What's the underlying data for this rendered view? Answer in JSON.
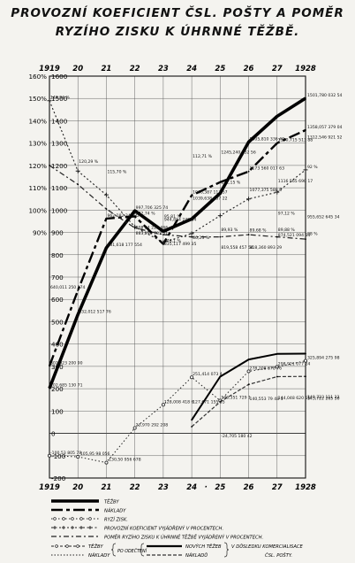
{
  "title": {
    "line1": "PROVOZNÍ KOEFICIENT ČSL. POŠTY A POMĚR",
    "line2": "RYZÍHO ZISKU K ÚHRNNÉ TĚŽBĚ."
  },
  "chart_data": {
    "type": "line",
    "title": "PROVOZNÍ KOEFICIENT ČSL. POŠTY A POMĚR RYZÍHO ZISKU K ÚHRNNÉ TĚŽBĚ.",
    "x_top": [
      "1919",
      "20",
      "21",
      "22",
      "23",
      "24",
      "25",
      "26",
      "27",
      "1928"
    ],
    "x_bottom": [
      "1919",
      "20",
      "21",
      "22",
      "23",
      "24",
      "·",
      "25",
      "26",
      "27",
      "1928"
    ],
    "y_left_ticks": [
      "160%",
      "150%",
      "140%",
      "130%",
      "120%",
      "110%",
      "100%",
      "90%"
    ],
    "y_right_ticks": [
      "1600",
      "1500",
      "1400",
      "1300",
      "1200",
      "1100",
      "1000",
      "900",
      "800",
      "700",
      "600",
      "500",
      "400",
      "300",
      "200",
      "100",
      "0",
      "-100",
      "-200"
    ],
    "ylim": [
      -200,
      1600
    ],
    "x_years": [
      1919,
      1920,
      1921,
      1922,
      1923,
      1924,
      1925,
      1926,
      1927,
      1928
    ],
    "series": [
      {
        "name": "TĚŽBY",
        "values": [
          202,
          532,
          831,
          997,
          905,
          960,
          1075,
          1305,
          1420,
          1501
        ]
      },
      {
        "name": "NÁKLADY",
        "values": [
          302,
          640,
          962,
          972,
          848,
          1066,
          1125,
          1173,
          1300,
          1358
        ]
      },
      {
        "name": "RYZÍ ZISK",
        "values": [
          -100,
          -105,
          -131,
          24,
          128,
          251,
          147,
          278,
          298,
          325
        ]
      },
      {
        "name": "PROVOZNÍ KOEFICIENT VYJÁDŘENÝ V PROCENTECH",
        "values": [
          1490,
          1175,
          1068,
          925,
          855,
          895,
          975,
          1050,
          1080,
          1180
        ]
      },
      {
        "name": "POMĚR RYZÍHO ZISKU K ÚHRNNÉ TĚŽBĚ VYJÁDŘENÝ V PROCENTECH",
        "values": [
          1200,
          1115,
          1005,
          920,
          890,
          880,
          880,
          890,
          880,
          870
        ]
      },
      {
        "name": "TĚŽBY",
        "values": [
          null,
          null,
          null,
          null,
          null,
          60,
          254,
          331,
          356,
          357
        ]
      },
      {
        "name": "NÁKLADY",
        "values": [
          null,
          null,
          null,
          null,
          null,
          30,
          141,
          219,
          254,
          255
        ]
      }
    ],
    "annotations": [
      {
        "text": "202,685 130 71",
        "x": 1919,
        "y": 202
      },
      {
        "text": "302,923 200 90",
        "x": 1919,
        "y": 302
      },
      {
        "text": "640,011 250 274",
        "x": 1919,
        "y": 640
      },
      {
        "text": "148,94 %",
        "x": 1919,
        "y": 1490
      },
      {
        "text": "-100,53 805 79",
        "x": 1919,
        "y": -100
      },
      {
        "text": "532,012 517 76",
        "x": 1920,
        "y": 532
      },
      {
        "text": "120,29 %",
        "x": 1920,
        "y": 1203
      },
      {
        "text": "-105,95 98 056",
        "x": 1920,
        "y": -105
      },
      {
        "text": "115,70 %",
        "x": 1921,
        "y": 1157
      },
      {
        "text": "962,282 34 232",
        "x": 1921,
        "y": 962
      },
      {
        "text": "831,618 177 554",
        "x": 1921,
        "y": 831
      },
      {
        "text": "-130,50 956 678",
        "x": 1921,
        "y": -131
      },
      {
        "text": "997,706 325 74",
        "x": 1922,
        "y": 997
      },
      {
        "text": "972,74 %",
        "x": 1922,
        "y": 972
      },
      {
        "text": "908 24 225 466",
        "x": 1922,
        "y": 908
      },
      {
        "text": "883,290 783 51",
        "x": 1922,
        "y": 883
      },
      {
        "text": "23,970 292 208",
        "x": 1922,
        "y": 24
      },
      {
        "text": "944,824 240 84",
        "x": 1923,
        "y": 944
      },
      {
        "text": "95,81 %",
        "x": 1923,
        "y": 958
      },
      {
        "text": "848,1 %",
        "x": 1923,
        "y": 848
      },
      {
        "text": "835,117 499 35",
        "x": 1923,
        "y": 835
      },
      {
        "text": "128,008 418 6",
        "x": 1923,
        "y": 128
      },
      {
        "text": "112,71 %",
        "x": 1924,
        "y": 1227
      },
      {
        "text": "1066,387 113 57",
        "x": 1924,
        "y": 1066
      },
      {
        "text": "1039,638 537 22",
        "x": 1924,
        "y": 1039
      },
      {
        "text": "86,23 %",
        "x": 1924,
        "y": 862
      },
      {
        "text": "251,414 073 4",
        "x": 1924,
        "y": 251
      },
      {
        "text": "127,671 155 35",
        "x": 1924,
        "y": 127
      },
      {
        "text": "1245,240 532 56",
        "x": 1925,
        "y": 1245
      },
      {
        "text": "111,15 %",
        "x": 1925,
        "y": 1111
      },
      {
        "text": "89,93 %",
        "x": 1925,
        "y": 899
      },
      {
        "text": "819,558 457 54",
        "x": 1925,
        "y": 819
      },
      {
        "text": "146,351 729 1",
        "x": 1925,
        "y": 146
      },
      {
        "text": "-24,705 180 42",
        "x": 1925,
        "y": -25
      },
      {
        "text": "1305,810 336 40",
        "x": 1926,
        "y": 1305
      },
      {
        "text": "1173 560 017 63",
        "x": 1926,
        "y": 1173
      },
      {
        "text": "1077,375 588 8",
        "x": 1926,
        "y": 1077
      },
      {
        "text": "89,68 %",
        "x": 1926,
        "y": 896
      },
      {
        "text": "818,360 893 29",
        "x": 1926,
        "y": 818
      },
      {
        "text": "278,208 878 76",
        "x": 1926,
        "y": 278
      },
      {
        "text": "140,553 79 48 1",
        "x": 1926,
        "y": 140
      },
      {
        "text": "1116 565 690 17",
        "x": 1927,
        "y": 1116
      },
      {
        "text": "1300,715 513 88",
        "x": 1927,
        "y": 1300
      },
      {
        "text": "97,12 %",
        "x": 1927,
        "y": 971
      },
      {
        "text": "89,88 %",
        "x": 1927,
        "y": 898
      },
      {
        "text": "874,521 094 54",
        "x": 1927,
        "y": 874
      },
      {
        "text": "298,921 077 24",
        "x": 1927,
        "y": 298
      },
      {
        "text": "144,048 620 55",
        "x": 1927,
        "y": 144
      },
      {
        "text": "1501,780 032 54",
        "x": 1928,
        "y": 1501
      },
      {
        "text": "1358,057 379 04",
        "x": 1928,
        "y": 1358
      },
      {
        "text": "1312,546 921 52",
        "x": 1928,
        "y": 1312
      },
      {
        "text": "92 %",
        "x": 1928,
        "y": 1180
      },
      {
        "text": "955,652 645 34",
        "x": 1928,
        "y": 955
      },
      {
        "text": "88 %",
        "x": 1928,
        "y": 880
      },
      {
        "text": "325,894 275 98",
        "x": 1928,
        "y": 325
      },
      {
        "text": "149,723 111 22",
        "x": 1928,
        "y": 149
      },
      {
        "text": "143,722 265 30",
        "x": 1928,
        "y": 143
      }
    ],
    "legend": [
      {
        "label": "TĚŽBY"
      },
      {
        "label": "NÁKLADY"
      },
      {
        "label": "RYZÍ ZISK."
      },
      {
        "label": "PROVOZNÍ KOEFICIENT VYJÁDŘENÝ V PROCENTECH."
      },
      {
        "label": "POMĚR RYZÍHO ZISKU K ÚHRNNÉ TĚŽBĚ VYJÁDŘENÝ V PROCENTECH."
      }
    ],
    "legend_bottom": {
      "col1": [
        "TĚŽBY",
        "NÁKLADY"
      ],
      "po_odecteni": "PO ODEČTENÍ",
      "col3": [
        "NOVÝCH TĚŽEB",
        "NÁKLADŮ"
      ],
      "right": "V DŮSLEDKU KOMERCIALISACE ČSL. POŠTY."
    }
  }
}
